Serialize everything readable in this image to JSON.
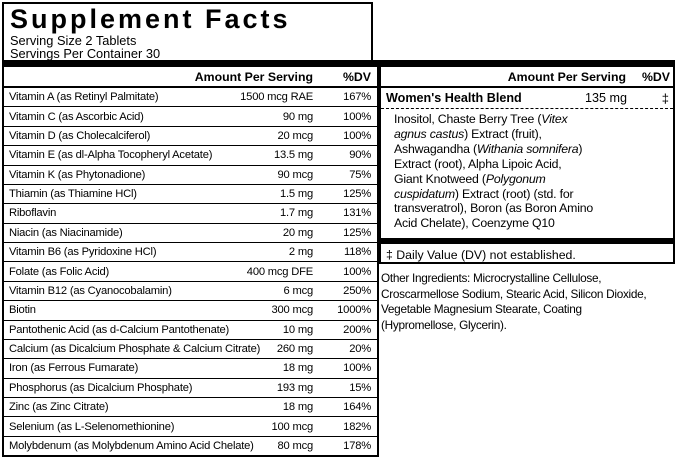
{
  "colors": {
    "text": "#000000",
    "background": "#ffffff",
    "border": "#000000"
  },
  "header": {
    "title": "Supplement Facts",
    "serving_size": "Serving Size 2 Tablets",
    "servings_per_container": "Servings Per Container 30"
  },
  "left_table": {
    "header": {
      "amount": "Amount Per Serving",
      "dv": "%DV"
    },
    "rows": [
      {
        "name": "Vitamin A (as Retinyl Palmitate)",
        "amount": "1500 mcg RAE",
        "dv": "167%"
      },
      {
        "name": "Vitamin C (as Ascorbic Acid)",
        "amount": "90 mg",
        "dv": "100%"
      },
      {
        "name": "Vitamin D (as Cholecalciferol)",
        "amount": "20 mcg",
        "dv": "100%"
      },
      {
        "name": "Vitamin E (as dl-Alpha Tocopheryl Acetate)",
        "amount": "13.5 mg",
        "dv": "90%"
      },
      {
        "name": "Vitamin K (as Phytonadione)",
        "amount": "90 mcg",
        "dv": "75%"
      },
      {
        "name": "Thiamin (as Thiamine HCl)",
        "amount": "1.5 mg",
        "dv": "125%"
      },
      {
        "name": "Riboflavin",
        "amount": "1.7 mg",
        "dv": "131%"
      },
      {
        "name": "Niacin (as Niacinamide)",
        "amount": "20 mg",
        "dv": "125%"
      },
      {
        "name": "Vitamin B6 (as Pyridoxine HCl)",
        "amount": "2 mg",
        "dv": "118%"
      },
      {
        "name": "Folate (as Folic Acid)",
        "amount": "400 mcg DFE",
        "dv": "100%"
      },
      {
        "name": "Vitamin B12 (as Cyanocobalamin)",
        "amount": "6 mcg",
        "dv": "250%"
      },
      {
        "name": "Biotin",
        "amount": "300 mcg",
        "dv": "1000%"
      },
      {
        "name": "Pantothenic Acid (as d-Calcium Pantothenate)",
        "amount": "10 mg",
        "dv": "200%"
      },
      {
        "name": "Calcium (as Dicalcium Phosphate & Calcium Citrate)",
        "amount": "260 mg",
        "dv": "20%"
      },
      {
        "name": "Iron (as Ferrous Fumarate)",
        "amount": "18 mg",
        "dv": "100%"
      },
      {
        "name": "Phosphorus (as Dicalcium Phosphate)",
        "amount": "193 mg",
        "dv": "15%"
      },
      {
        "name": "Zinc (as Zinc Citrate)",
        "amount": "18 mg",
        "dv": "164%"
      },
      {
        "name": "Selenium (as L-Selenomethionine)",
        "amount": "100 mcg",
        "dv": "182%"
      },
      {
        "name": "Molybdenum (as Molybdenum Amino Acid Chelate)",
        "amount": "80 mcg",
        "dv": "178%"
      }
    ]
  },
  "right_panel": {
    "header": {
      "amount": "Amount Per Serving",
      "dv": "%DV"
    },
    "blend": {
      "name": "Women's Health Blend",
      "amount": "135 mg",
      "dv": "‡"
    },
    "blend_ingredient_lines": [
      [
        {
          "text": "Inositol, Chaste Berry Tree (",
          "italic": false
        },
        {
          "text": "Vitex",
          "italic": true
        }
      ],
      [
        {
          "text": "agnus castus",
          "italic": true
        },
        {
          "text": ") Extract (fruit),",
          "italic": false
        }
      ],
      [
        {
          "text": "Ashwagandha (",
          "italic": false
        },
        {
          "text": "Withania somnifera",
          "italic": true
        },
        {
          "text": ")",
          "italic": false
        }
      ],
      [
        {
          "text": "Extract (root), Alpha Lipoic Acid,",
          "italic": false
        }
      ],
      [
        {
          "text": "Giant Knotweed (",
          "italic": false
        },
        {
          "text": "Polygonum",
          "italic": true
        }
      ],
      [
        {
          "text": "cuspidatum",
          "italic": true
        },
        {
          "text": ") Extract (root) (std. for",
          "italic": false
        }
      ],
      [
        {
          "text": "transveratrol), Boron (as Boron Amino",
          "italic": false
        }
      ],
      [
        {
          "text": "Acid Chelate), Coenzyme Q10",
          "italic": false
        }
      ]
    ],
    "footnote": "‡ Daily Value (DV) not established."
  },
  "other_ingredients": "Other Ingredients: Microcrystalline Cellulose,\nCroscarmellose Sodium, Stearic Acid, Silicon Dioxide,\nVegetable Magnesium Stearate, Coating\n(Hypromellose, Glycerin)."
}
